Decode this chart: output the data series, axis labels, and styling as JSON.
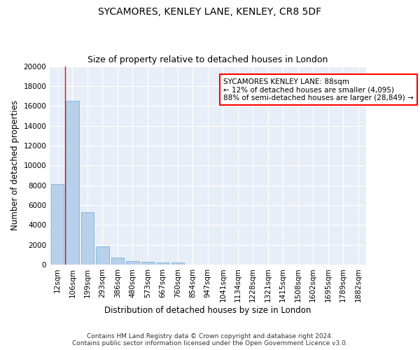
{
  "title": "SYCAMORES, KENLEY LANE, KENLEY, CR8 5DF",
  "subtitle": "Size of property relative to detached houses in London",
  "xlabel": "Distribution of detached houses by size in London",
  "ylabel": "Number of detached properties",
  "footer_line1": "Contains HM Land Registry data © Crown copyright and database right 2024.",
  "footer_line2": "Contains public sector information licensed under the Open Government Licence v3.0.",
  "annotation_line1": "SYCAMORES KENLEY LANE: 88sqm",
  "annotation_line2": "← 12% of detached houses are smaller (4,095)",
  "annotation_line3": "88% of semi-detached houses are larger (28,849) →",
  "bar_labels": [
    "12sqm",
    "106sqm",
    "199sqm",
    "293sqm",
    "386sqm",
    "480sqm",
    "573sqm",
    "667sqm",
    "760sqm",
    "854sqm",
    "947sqm",
    "1041sqm",
    "1134sqm",
    "1228sqm",
    "1321sqm",
    "1415sqm",
    "1508sqm",
    "1602sqm",
    "1695sqm",
    "1789sqm",
    "1882sqm"
  ],
  "bar_values": [
    8100,
    16500,
    5300,
    1800,
    700,
    350,
    270,
    210,
    170,
    0,
    0,
    0,
    0,
    0,
    0,
    0,
    0,
    0,
    0,
    0,
    0
  ],
  "bar_color": "#b8d0ea",
  "bar_edge_color": "#6aaed6",
  "ylim": [
    0,
    20000
  ],
  "yticks": [
    0,
    2000,
    4000,
    6000,
    8000,
    10000,
    12000,
    14000,
    16000,
    18000,
    20000
  ],
  "bg_color": "#e8eef8",
  "grid_color": "#ffffff",
  "title_fontsize": 10,
  "subtitle_fontsize": 9,
  "axis_label_fontsize": 8.5,
  "tick_fontsize": 7.5,
  "annotation_fontsize": 7.5,
  "footer_fontsize": 6.5
}
